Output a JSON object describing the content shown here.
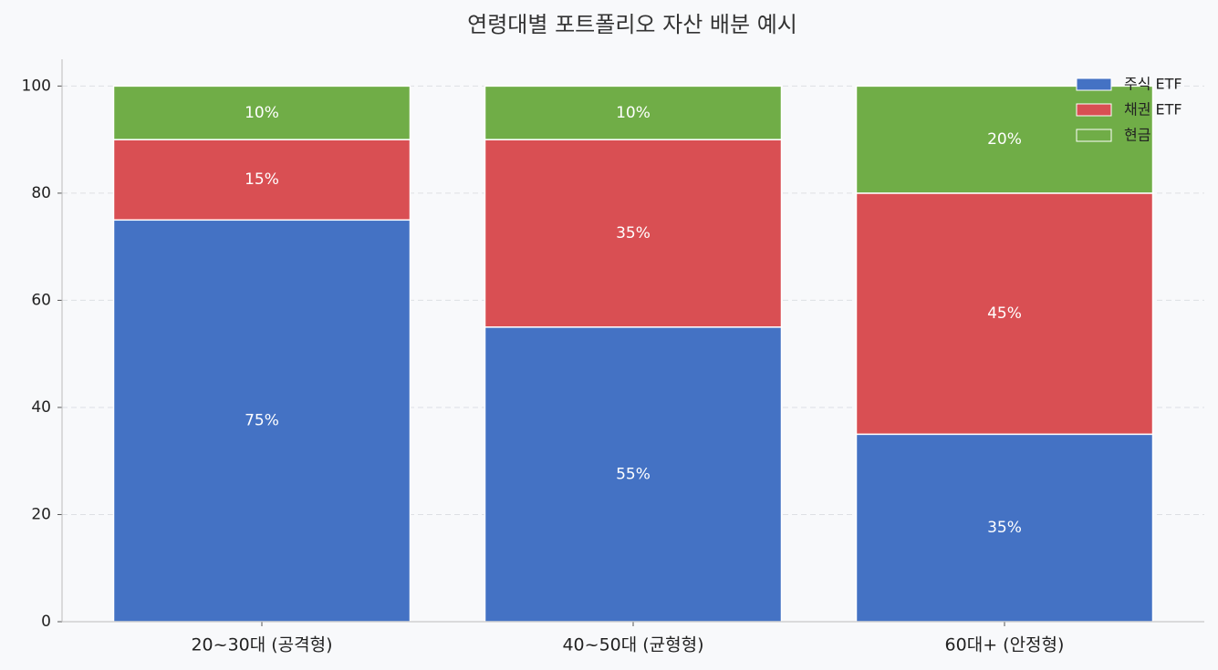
{
  "chart_data": {
    "type": "bar",
    "stacked": true,
    "title": "연령대별 포트폴리오 자산 배분 예시",
    "categories": [
      "20~30대 (공격형)",
      "40~50대 (균형형)",
      "60대+ (안정형)"
    ],
    "series": [
      {
        "name": "주식 ETF",
        "color": "#4472c4",
        "values": [
          75,
          55,
          35
        ],
        "value_labels": [
          "75%",
          "55%",
          "35%"
        ]
      },
      {
        "name": "채권 ETF",
        "color": "#d94f53",
        "values": [
          15,
          35,
          45
        ],
        "value_labels": [
          "15%",
          "35%",
          "45%"
        ]
      },
      {
        "name": "현금",
        "color": "#70ad47",
        "values": [
          10,
          10,
          20
        ],
        "value_labels": [
          "10%",
          "10%",
          "20%"
        ]
      }
    ],
    "ylim": [
      0,
      105
    ],
    "yticks": [
      0,
      20,
      40,
      60,
      80,
      100
    ],
    "grid": true,
    "legend": "upper right"
  }
}
